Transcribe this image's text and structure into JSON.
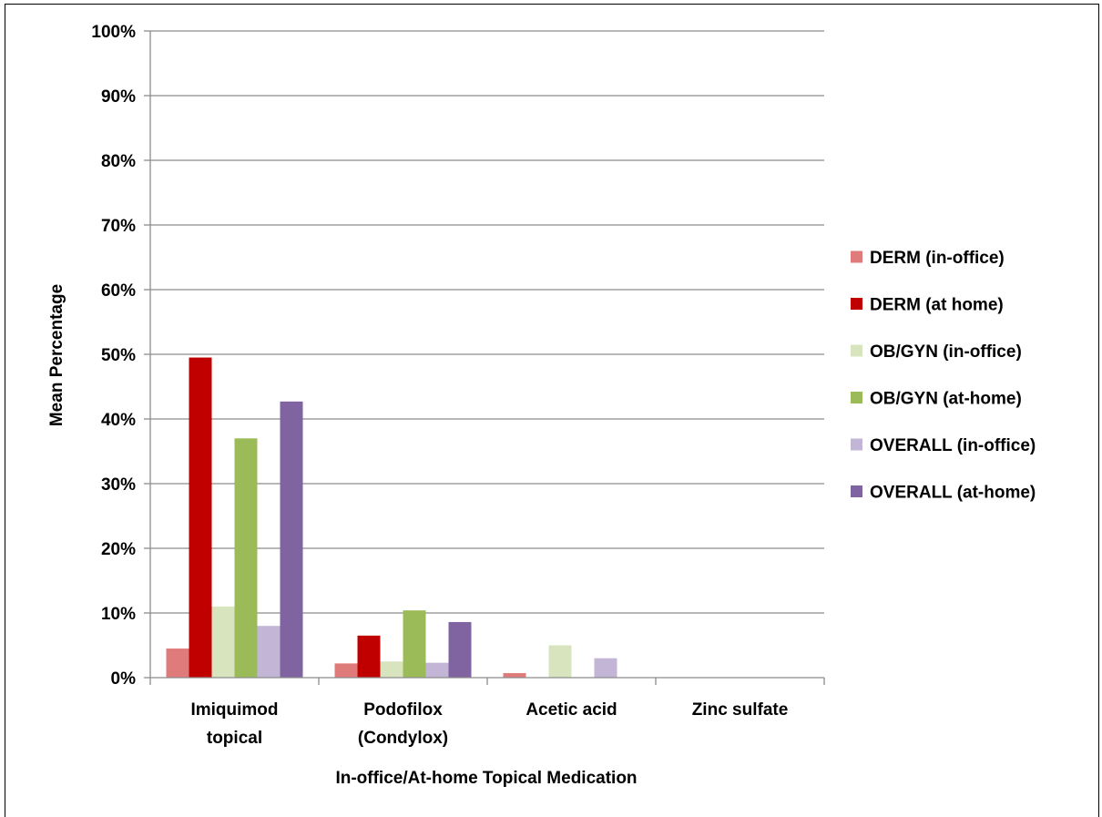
{
  "chart_data": {
    "type": "bar",
    "title": "",
    "xlabel": "In-office/At-home Topical Medication",
    "ylabel": "Mean Percentage",
    "ylim": [
      0,
      100
    ],
    "yticks": [
      "0%",
      "10%",
      "20%",
      "30%",
      "40%",
      "50%",
      "60%",
      "70%",
      "80%",
      "90%",
      "100%"
    ],
    "grid": true,
    "legend_position": "right",
    "categories": [
      [
        "Imiquimod",
        "topical"
      ],
      [
        "Podofilox",
        "(Condylox)"
      ],
      [
        "Acetic acid"
      ],
      [
        "Zinc sulfate"
      ]
    ],
    "series": [
      {
        "name": "DERM (in-office)",
        "color": "#e07b7b",
        "values": [
          4.5,
          2.2,
          0.7,
          0
        ]
      },
      {
        "name": "DERM (at home)",
        "color": "#c00000",
        "values": [
          49.5,
          6.5,
          0,
          0
        ]
      },
      {
        "name": "OB/GYN (in-office)",
        "color": "#d7e4bd",
        "values": [
          11.0,
          2.5,
          5.0,
          0
        ]
      },
      {
        "name": "OB/GYN (at-home)",
        "color": "#9bbb59",
        "values": [
          37.0,
          10.4,
          0,
          0
        ]
      },
      {
        "name": "OVERALL (in-office)",
        "color": "#c3b5d6",
        "values": [
          8.0,
          2.3,
          3.0,
          0
        ]
      },
      {
        "name": "OVERALL (at-home)",
        "color": "#8064a2",
        "values": [
          42.7,
          8.6,
          0,
          0
        ]
      }
    ]
  }
}
